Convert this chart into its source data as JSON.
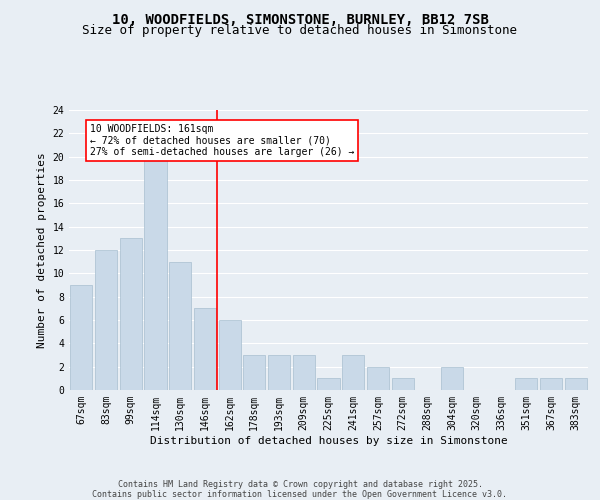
{
  "title1": "10, WOODFIELDS, SIMONSTONE, BURNLEY, BB12 7SB",
  "title2": "Size of property relative to detached houses in Simonstone",
  "xlabel": "Distribution of detached houses by size in Simonstone",
  "ylabel": "Number of detached properties",
  "bar_labels": [
    "67sqm",
    "83sqm",
    "99sqm",
    "114sqm",
    "130sqm",
    "146sqm",
    "162sqm",
    "178sqm",
    "193sqm",
    "209sqm",
    "225sqm",
    "241sqm",
    "257sqm",
    "272sqm",
    "288sqm",
    "304sqm",
    "320sqm",
    "336sqm",
    "351sqm",
    "367sqm",
    "383sqm"
  ],
  "bar_values": [
    9,
    12,
    13,
    20,
    11,
    7,
    6,
    3,
    3,
    3,
    1,
    3,
    2,
    1,
    0,
    2,
    0,
    0,
    1,
    1,
    1
  ],
  "bar_color": "#c9d9e8",
  "bar_edgecolor": "#a8bfd0",
  "annotation_text": "10 WOODFIELDS: 161sqm\n← 72% of detached houses are smaller (70)\n27% of semi-detached houses are larger (26) →",
  "annotation_box_color": "white",
  "annotation_box_edgecolor": "red",
  "vline_color": "red",
  "ylim": [
    0,
    24
  ],
  "yticks": [
    0,
    2,
    4,
    6,
    8,
    10,
    12,
    14,
    16,
    18,
    20,
    22,
    24
  ],
  "background_color": "#e8eef4",
  "plot_background": "#e8eef4",
  "grid_color": "white",
  "footnote": "Contains HM Land Registry data © Crown copyright and database right 2025.\nContains public sector information licensed under the Open Government Licence v3.0.",
  "title1_fontsize": 10,
  "title2_fontsize": 9,
  "ylabel_fontsize": 8,
  "xlabel_fontsize": 8,
  "tick_fontsize": 7,
  "annot_fontsize": 7,
  "footnote_fontsize": 6
}
